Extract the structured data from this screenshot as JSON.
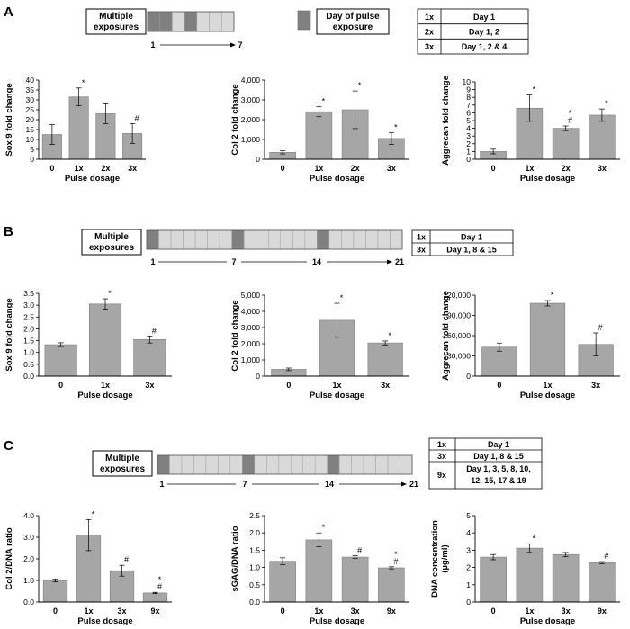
{
  "panels": [
    {
      "label": "A",
      "exposure_box": "Multiple exposures",
      "exposure_lines": [
        "Multiple",
        "exposures"
      ],
      "timeline": {
        "start": "1",
        "end": "7",
        "days": 7,
        "pulse_days": [
          1,
          2,
          4
        ]
      },
      "legend_lines": [
        "Day of pulse",
        "exposure"
      ],
      "dosing_table": [
        [
          "1x",
          "Day 1"
        ],
        [
          "2x",
          "Day 1, 2"
        ],
        [
          "3x",
          "Day 1, 2 & 4"
        ]
      ]
    },
    {
      "label": "B",
      "exposure_lines": [
        "Multiple",
        "exposures"
      ],
      "timeline": {
        "start": "1",
        "mid1": "7",
        "mid2": "14",
        "end": "21",
        "days": 21,
        "pulse_days": [
          1,
          8,
          15
        ]
      },
      "dosing_table": [
        [
          "1x",
          "Day 1"
        ],
        [
          "3x",
          "Day 1, 8 & 15"
        ]
      ]
    },
    {
      "label": "C",
      "exposure_lines": [
        "Multiple",
        "exposures"
      ],
      "timeline": {
        "start": "1",
        "mid1": "7",
        "mid2": "14",
        "end": "21",
        "days": 21,
        "pulse_days": [
          1,
          8,
          15
        ]
      },
      "dosing_table": [
        [
          "1x",
          "Day 1"
        ],
        [
          "3x",
          "Day 1, 8 & 15"
        ],
        [
          "9x",
          "Day 1, 3, 5, 8, 10, 12, 15, 17 & 19"
        ]
      ],
      "dosing_table_lines": [
        [
          "1x",
          [
            "Day 1"
          ]
        ],
        [
          "3x",
          [
            "Day 1, 8 & 15"
          ]
        ],
        [
          "9x",
          [
            "Day 1, 3, 5, 8, 10,",
            "12, 15, 17 & 19"
          ]
        ]
      ]
    }
  ],
  "colors": {
    "bar": "#a6a6a6",
    "bar_stroke": "#7f7f7f",
    "pulse": "#808080",
    "empty_day": "#d9d9d9",
    "text": "#000000"
  },
  "chart_data": [
    {
      "type": "bar",
      "panel": "A",
      "categories": [
        "0",
        "1x",
        "2x",
        "3x"
      ],
      "values": [
        12.5,
        31.5,
        23,
        13
      ],
      "errors": [
        5,
        4.5,
        5,
        5
      ],
      "annotations": [
        "",
        "*",
        "",
        "#"
      ],
      "ylabel": "Sox 9 fold change",
      "xlabel": "Pulse dosage",
      "ylim": [
        0,
        40
      ],
      "yticks": [
        "0",
        "5",
        "10",
        "15",
        "20",
        "25",
        "30",
        "35",
        "40"
      ]
    },
    {
      "type": "bar",
      "panel": "A",
      "categories": [
        "0",
        "1x",
        "2x",
        "3x"
      ],
      "values": [
        350,
        2400,
        2500,
        1050
      ],
      "errors": [
        80,
        250,
        950,
        300
      ],
      "annotations": [
        "",
        "*",
        "*",
        "*"
      ],
      "ylabel": "Col 2 fold change",
      "xlabel": "Pulse dosage",
      "ylim": [
        0,
        4000
      ],
      "yticks": [
        "0",
        "1,000",
        "2,000",
        "3,000",
        "4,000"
      ]
    },
    {
      "type": "bar",
      "panel": "A",
      "categories": [
        "0",
        "1x",
        "2x",
        "3x"
      ],
      "values": [
        1,
        6.6,
        4,
        5.7
      ],
      "errors": [
        0.3,
        1.7,
        0.3,
        0.8
      ],
      "annotations": [
        "",
        "*",
        "*\n#",
        "*"
      ],
      "ylabel": "Aggrecan fold change",
      "xlabel": "Pulse dosage",
      "ylim": [
        0,
        10
      ],
      "yticks": [
        "0",
        "1",
        "2",
        "3",
        "4",
        "5",
        "6",
        "7",
        "8",
        "9",
        "10"
      ]
    },
    {
      "type": "bar",
      "panel": "B",
      "categories": [
        "0",
        "1x",
        "3x"
      ],
      "values": [
        1.33,
        3.05,
        1.55
      ],
      "errors": [
        0.08,
        0.22,
        0.15
      ],
      "annotations": [
        "",
        "*",
        "#"
      ],
      "ylabel": "Sox 9 fold change",
      "xlabel": "Pulse dosage",
      "ylim": [
        0,
        3.5
      ],
      "yticks": [
        "0.0",
        "0.5",
        "1.0",
        "1.5",
        "2.0",
        "2.5",
        "3.0",
        "3.5"
      ]
    },
    {
      "type": "bar",
      "panel": "B",
      "categories": [
        "0",
        "1x",
        "3x"
      ],
      "values": [
        420,
        3450,
        2050
      ],
      "errors": [
        80,
        1050,
        120
      ],
      "annotations": [
        "",
        "*",
        "*"
      ],
      "ylabel": "Col 2 fold change",
      "xlabel": "Pulse dosage",
      "ylim": [
        0,
        5000
      ],
      "yticks": [
        "0",
        "1,000",
        "2,000",
        "3,000",
        "4,000",
        "5,000"
      ]
    },
    {
      "type": "bar",
      "panel": "B",
      "categories": [
        "0",
        "1x",
        "3x"
      ],
      "values": [
        43000,
        108000,
        47000
      ],
      "errors": [
        6000,
        4000,
        17000
      ],
      "annotations": [
        "",
        "*",
        "#"
      ],
      "ylabel": "Aggrecan fold change",
      "xlabel": "Pulse dosage",
      "ylim": [
        0,
        120000
      ],
      "yticks": [
        "0",
        "30,000",
        "60,000",
        "90,000",
        "120,000"
      ]
    },
    {
      "type": "bar",
      "panel": "C",
      "categories": [
        "0",
        "1x",
        "3x",
        "9x"
      ],
      "values": [
        1.0,
        3.1,
        1.45,
        0.42
      ],
      "errors": [
        0.07,
        0.72,
        0.25,
        0.03
      ],
      "annotations": [
        "",
        "*",
        "#",
        "*\n#"
      ],
      "ylabel": "Col 2/DNA ratio",
      "xlabel": "Pulse dosage",
      "ylim": [
        0,
        4
      ],
      "yticks": [
        "0.0",
        "1.0",
        "2.0",
        "3.0",
        "4.0"
      ]
    },
    {
      "type": "bar",
      "panel": "C",
      "categories": [
        "0",
        "1x",
        "3x",
        "9x"
      ],
      "values": [
        1.18,
        1.8,
        1.3,
        0.99
      ],
      "errors": [
        0.1,
        0.2,
        0.04,
        0.03
      ],
      "annotations": [
        "",
        "*",
        "#",
        "*\n#"
      ],
      "ylabel": "sGAG/DNA ratio",
      "xlabel": "Pulse dosage",
      "ylim": [
        0,
        2.5
      ],
      "yticks": [
        "0.0",
        "0.5",
        "1.0",
        "1.5",
        "2.0",
        "2.5"
      ]
    },
    {
      "type": "bar",
      "panel": "C",
      "categories": [
        "0",
        "1x",
        "3x",
        "9x"
      ],
      "values": [
        2.6,
        3.12,
        2.75,
        2.28
      ],
      "errors": [
        0.15,
        0.25,
        0.12,
        0.06
      ],
      "annotations": [
        "",
        "*",
        "",
        "#"
      ],
      "ylabel": "DNA concentration\n(µg/ml)",
      "xlabel": "Pulse dosage",
      "ylim": [
        0,
        5
      ],
      "yticks": [
        "0",
        "1",
        "2",
        "3",
        "4",
        "5"
      ]
    }
  ]
}
